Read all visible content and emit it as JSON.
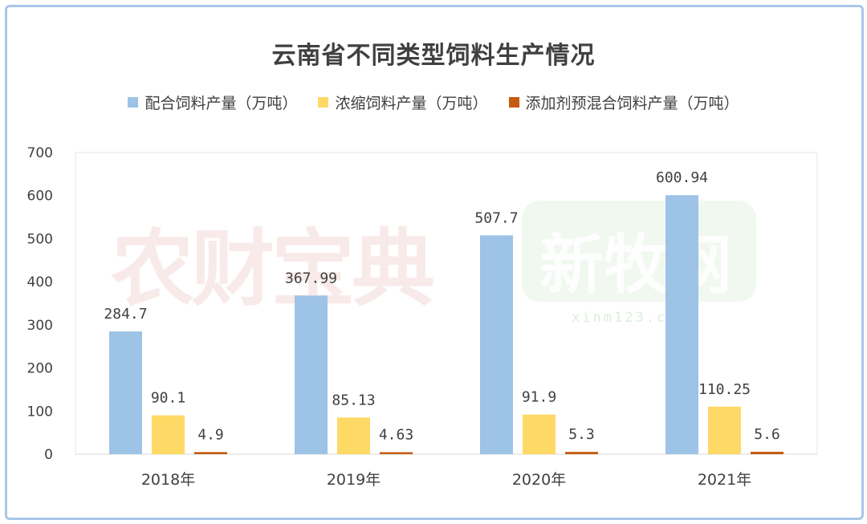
{
  "chart_data": {
    "type": "bar",
    "title": "云南省不同类型饲料生产情况",
    "categories": [
      "2018年",
      "2019年",
      "2020年",
      "2021年"
    ],
    "series": [
      {
        "name": "配合饲料产量（万吨）",
        "color": "#9dc3e6",
        "values": [
          284.7,
          367.99,
          507.7,
          600.94
        ],
        "labels": [
          "284.7",
          "367.99",
          "507.7",
          "600.94"
        ]
      },
      {
        "name": "浓缩饲料产量（万吨）",
        "color": "#ffd966",
        "values": [
          90.1,
          85.13,
          91.9,
          110.25
        ],
        "labels": [
          "90.1",
          "85.13",
          "91.9",
          "110.25"
        ]
      },
      {
        "name": "添加剂预混合饲料产量（万吨）",
        "color": "#c55a11",
        "values": [
          4.9,
          4.63,
          5.3,
          5.6
        ],
        "labels": [
          "4.9",
          "4.63",
          "5.3",
          "5.6"
        ]
      }
    ],
    "ylim": [
      0,
      700
    ],
    "yticks": [
      0,
      100,
      200,
      300,
      400,
      500,
      600,
      700
    ],
    "grid": false,
    "legend_position": "top"
  },
  "watermarks": {
    "left_text": "农财宝典",
    "right_text": "新牧网",
    "right_subtext": "xinm123.com"
  }
}
